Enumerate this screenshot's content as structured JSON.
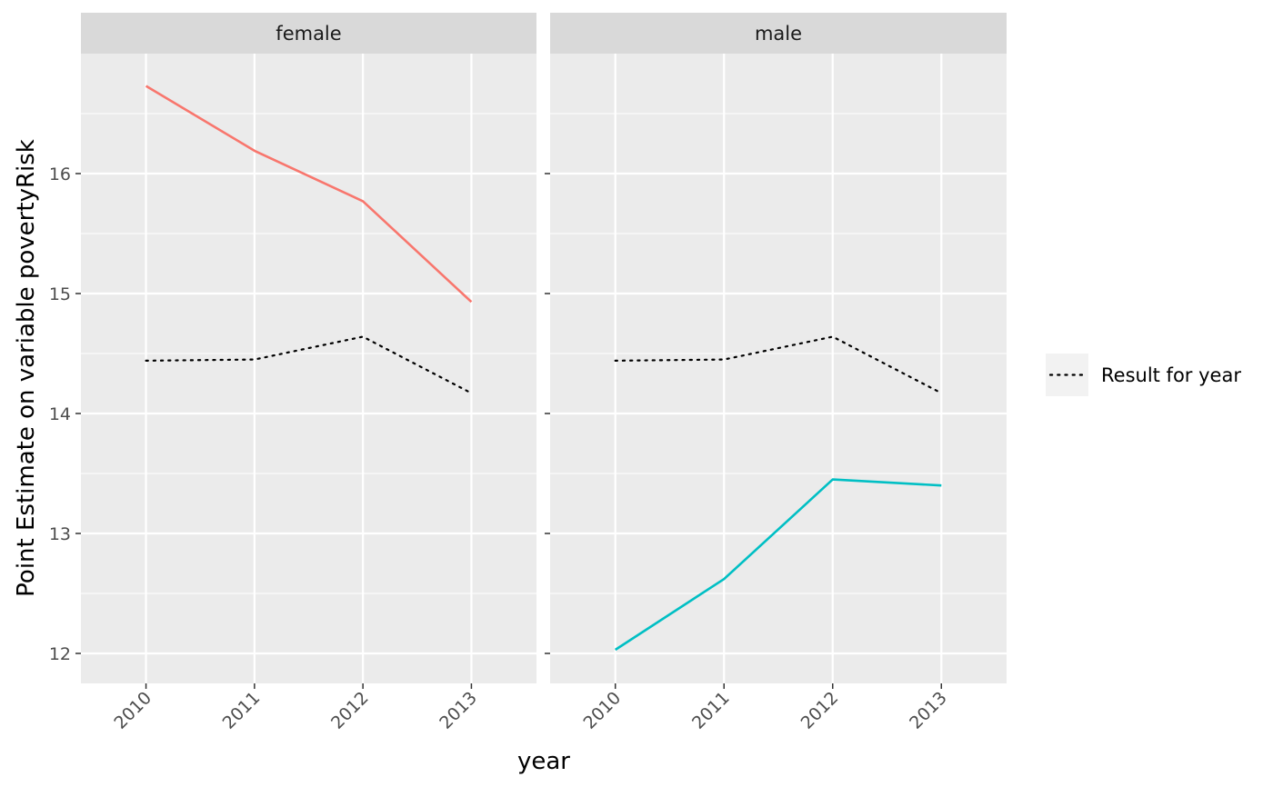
{
  "chart_data": {
    "type": "line",
    "xlabel": "year",
    "ylabel": "Point Estimate on variable povertyRisk",
    "x": [
      2010,
      2011,
      2012,
      2013
    ],
    "ylim": [
      11.75,
      17.0
    ],
    "y_ticks": [
      12,
      13,
      14,
      15,
      16
    ],
    "grid": true,
    "panels": [
      {
        "name": "female",
        "series": [
          {
            "values": [
              16.73,
              16.19,
              15.77,
              14.93
            ],
            "color": "#F8766D",
            "linetype": "solid"
          },
          {
            "name": "Result for year",
            "values": [
              14.44,
              14.45,
              14.64,
              14.17
            ],
            "color": "#000000",
            "linetype": "dotted"
          }
        ]
      },
      {
        "name": "male",
        "series": [
          {
            "values": [
              12.03,
              12.62,
              13.45,
              13.4
            ],
            "color": "#00BFC4",
            "linetype": "solid"
          },
          {
            "name": "Result for year",
            "values": [
              14.44,
              14.45,
              14.64,
              14.17
            ],
            "color": "#000000",
            "linetype": "dotted"
          }
        ]
      }
    ],
    "legend": {
      "placement": "right",
      "entries": [
        {
          "label": "Result for year",
          "linetype": "dotted",
          "color": "#000000"
        }
      ]
    }
  }
}
